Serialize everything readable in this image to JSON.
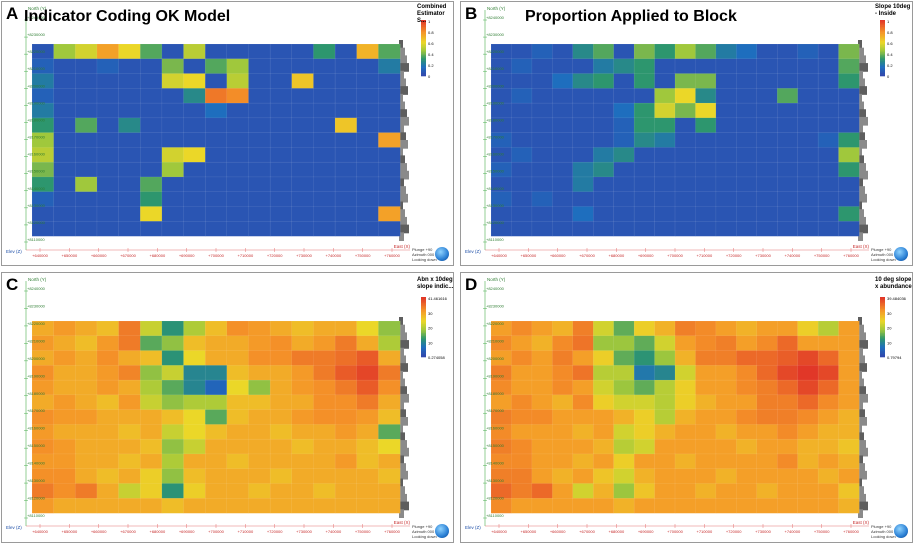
{
  "chart_data": [
    {
      "type": "heatmap",
      "panel_letter": "A",
      "title": "Indicator Coding OK Model",
      "legend_title": "Combined Estimator S...",
      "legend_ticks": [
        "1",
        "0.8",
        "0.6",
        "0.4",
        "0.2",
        "0"
      ],
      "range": [
        0,
        1
      ],
      "rows": [
        [
          0.05,
          0.45,
          0.55,
          0.75,
          0.6,
          0.35,
          0.05,
          0.5,
          0.05,
          0.05,
          0.05,
          0.05,
          0.05,
          0.3,
          0.05,
          0.7,
          0.35
        ],
        [
          0.1,
          0.05,
          0.05,
          0.1,
          0.05,
          0.05,
          0.4,
          0.05,
          0.35,
          0.45,
          0.05,
          0.05,
          0.05,
          0.05,
          0.05,
          0.05,
          0.2
        ],
        [
          0.2,
          0.05,
          0.05,
          0.05,
          0.05,
          0.05,
          0.55,
          0.6,
          0.05,
          0.5,
          0.05,
          0.05,
          0.65,
          0.05,
          0.05,
          0.05,
          0.05
        ],
        [
          0.1,
          0.05,
          0.05,
          0.05,
          0.05,
          0.05,
          0.05,
          0.25,
          0.85,
          0.8,
          0.05,
          0.05,
          0.05,
          0.05,
          0.05,
          0.05,
          0.05
        ],
        [
          0.2,
          0.05,
          0.05,
          0.05,
          0.05,
          0.05,
          0.05,
          0.05,
          0.15,
          0.05,
          0.05,
          0.05,
          0.05,
          0.05,
          0.05,
          0.05,
          0.05
        ],
        [
          0.3,
          0.05,
          0.35,
          0.05,
          0.25,
          0.05,
          0.05,
          0.05,
          0.05,
          0.05,
          0.05,
          0.05,
          0.05,
          0.05,
          0.65,
          0.05,
          0.05
        ],
        [
          0.45,
          0.05,
          0.05,
          0.05,
          0.05,
          0.05,
          0.05,
          0.05,
          0.05,
          0.05,
          0.05,
          0.05,
          0.05,
          0.05,
          0.05,
          0.05,
          0.75
        ],
        [
          0.5,
          0.05,
          0.05,
          0.05,
          0.05,
          0.05,
          0.55,
          0.6,
          0.05,
          0.05,
          0.05,
          0.05,
          0.05,
          0.05,
          0.05,
          0.05,
          0.05
        ],
        [
          0.4,
          0.05,
          0.05,
          0.05,
          0.05,
          0.05,
          0.45,
          0.05,
          0.05,
          0.05,
          0.05,
          0.05,
          0.05,
          0.05,
          0.05,
          0.05,
          0.05
        ],
        [
          0.3,
          0.05,
          0.45,
          0.05,
          0.05,
          0.35,
          0.05,
          0.05,
          0.05,
          0.05,
          0.05,
          0.05,
          0.05,
          0.05,
          0.05,
          0.05,
          0.05
        ],
        [
          0.1,
          0.05,
          0.05,
          0.05,
          0.05,
          0.3,
          0.05,
          0.05,
          0.05,
          0.05,
          0.05,
          0.05,
          0.05,
          0.05,
          0.05,
          0.05,
          0.05
        ],
        [
          0.05,
          0.05,
          0.05,
          0.05,
          0.05,
          0.6,
          0.05,
          0.05,
          0.05,
          0.05,
          0.05,
          0.05,
          0.05,
          0.05,
          0.05,
          0.05,
          0.75
        ],
        [
          0.05,
          0.05,
          0.05,
          0.05,
          0.05,
          0.05,
          0.05,
          0.05,
          0.05,
          0.05,
          0.05,
          0.05,
          0.05,
          0.05,
          0.05,
          0.05,
          0.05
        ]
      ],
      "north_ticks": [
        "+8240000",
        "+8230000",
        "+8220000",
        "+8210000",
        "+8200000",
        "+8190000",
        "+8180000",
        "+8170000",
        "+8160000",
        "+8150000",
        "+8140000",
        "+8130000",
        "+8120000",
        "+8110000"
      ],
      "east_ticks": [
        "+640000",
        "+650000",
        "+660000",
        "+670000",
        "+680000",
        "+690000",
        "+700000",
        "+710000",
        "+720000",
        "+730000",
        "+740000",
        "+750000",
        "+760000"
      ],
      "north_label": "North (Y)",
      "east_label": "East (X)",
      "elev_label": "Elev (Z)",
      "nav_text": [
        "Plunge +90",
        "Azimuth 000",
        "Looking down"
      ]
    },
    {
      "type": "heatmap",
      "panel_letter": "B",
      "title": "Proportion Applied to Block",
      "legend_title": "Slope 10deg - Inside",
      "legend_ticks": [
        "1",
        "0.8",
        "0.6",
        "0.4",
        "0.2",
        "0"
      ],
      "range": [
        0,
        1
      ],
      "rows": [
        [
          0.05,
          0.05,
          0.1,
          0.05,
          0.25,
          0.35,
          0.05,
          0.4,
          0.3,
          0.45,
          0.35,
          0.2,
          0.15,
          0.05,
          0.05,
          0.1,
          0.05,
          0.4
        ],
        [
          0.05,
          0.1,
          0.05,
          0.05,
          0.05,
          0.2,
          0.25,
          0.3,
          0.05,
          0.05,
          0.05,
          0.05,
          0.05,
          0.05,
          0.05,
          0.05,
          0.05,
          0.35
        ],
        [
          0.05,
          0.05,
          0.05,
          0.15,
          0.25,
          0.3,
          0.05,
          0.3,
          0.05,
          0.4,
          0.4,
          0.05,
          0.05,
          0.05,
          0.05,
          0.05,
          0.05,
          0.3
        ],
        [
          0.05,
          0.1,
          0.05,
          0.05,
          0.05,
          0.05,
          0.05,
          0.05,
          0.45,
          0.6,
          0.25,
          0.05,
          0.05,
          0.05,
          0.35,
          0.05,
          0.05,
          0.05
        ],
        [
          0.05,
          0.05,
          0.05,
          0.05,
          0.05,
          0.05,
          0.15,
          0.3,
          0.55,
          0.4,
          0.6,
          0.05,
          0.05,
          0.05,
          0.05,
          0.05,
          0.05,
          0.05
        ],
        [
          0.05,
          0.05,
          0.05,
          0.05,
          0.05,
          0.05,
          0.1,
          0.3,
          0.3,
          0.05,
          0.3,
          0.05,
          0.05,
          0.05,
          0.05,
          0.05,
          0.05,
          0.05
        ],
        [
          0.1,
          0.05,
          0.05,
          0.05,
          0.05,
          0.05,
          0.1,
          0.25,
          0.2,
          0.05,
          0.05,
          0.05,
          0.05,
          0.05,
          0.05,
          0.05,
          0.1,
          0.3
        ],
        [
          0.05,
          0.1,
          0.05,
          0.05,
          0.05,
          0.2,
          0.25,
          0.05,
          0.05,
          0.05,
          0.05,
          0.05,
          0.05,
          0.05,
          0.05,
          0.05,
          0.05,
          0.45
        ],
        [
          0.1,
          0.05,
          0.05,
          0.05,
          0.2,
          0.25,
          0.05,
          0.05,
          0.05,
          0.05,
          0.05,
          0.05,
          0.05,
          0.05,
          0.05,
          0.05,
          0.05,
          0.3
        ],
        [
          0.05,
          0.05,
          0.05,
          0.05,
          0.2,
          0.05,
          0.05,
          0.05,
          0.05,
          0.05,
          0.05,
          0.05,
          0.05,
          0.05,
          0.05,
          0.05,
          0.05,
          0.05
        ],
        [
          0.1,
          0.05,
          0.1,
          0.05,
          0.05,
          0.05,
          0.05,
          0.05,
          0.05,
          0.05,
          0.05,
          0.05,
          0.05,
          0.05,
          0.05,
          0.05,
          0.05,
          0.05
        ],
        [
          0.05,
          0.05,
          0.05,
          0.05,
          0.15,
          0.05,
          0.05,
          0.05,
          0.05,
          0.05,
          0.05,
          0.05,
          0.05,
          0.05,
          0.05,
          0.05,
          0.05,
          0.3
        ],
        [
          0.05,
          0.05,
          0.05,
          0.05,
          0.05,
          0.05,
          0.05,
          0.05,
          0.05,
          0.05,
          0.05,
          0.05,
          0.05,
          0.05,
          0.05,
          0.05,
          0.05,
          0.05
        ]
      ],
      "north_ticks": [
        "+8240000",
        "+8230000",
        "+8220000",
        "+8210000",
        "+8200000",
        "+8190000",
        "+8180000",
        "+8170000",
        "+8160000",
        "+8150000",
        "+8140000",
        "+8130000",
        "+8120000",
        "+8110000"
      ],
      "east_ticks": [
        "+640000",
        "+650000",
        "+660000",
        "+670000",
        "+680000",
        "+690000",
        "+700000",
        "+710000",
        "+720000",
        "+730000",
        "+740000",
        "+750000",
        "+760000"
      ],
      "north_label": "North (Y)",
      "east_label": "East (X)",
      "elev_label": "Elev (Z)",
      "nav_text": [
        "Plunge +90",
        "Azimuth 000",
        "Looking down"
      ]
    },
    {
      "type": "heatmap",
      "panel_letter": "C",
      "title": "",
      "legend_title": "Abn x 10deg slope indic...",
      "legend_ticks": [
        "41.461616",
        "30",
        "20",
        "10",
        "0.274058"
      ],
      "range": [
        0.274058,
        41.461616
      ],
      "rows": [
        [
          30,
          32,
          30,
          28,
          35,
          22,
          12,
          20,
          28,
          33,
          32,
          30,
          28,
          30,
          30,
          25,
          18
        ],
        [
          32,
          30,
          28,
          32,
          35,
          15,
          18,
          28,
          30,
          30,
          32,
          33,
          30,
          32,
          35,
          30,
          20
        ],
        [
          30,
          32,
          30,
          33,
          30,
          28,
          12,
          25,
          30,
          30,
          33,
          33,
          35,
          35,
          36,
          38,
          30
        ],
        [
          33,
          30,
          30,
          32,
          34,
          18,
          22,
          10,
          10,
          28,
          30,
          30,
          32,
          35,
          38,
          40,
          35
        ],
        [
          32,
          30,
          30,
          32,
          30,
          20,
          15,
          10,
          5,
          25,
          18,
          30,
          32,
          33,
          35,
          38,
          33
        ],
        [
          30,
          32,
          30,
          28,
          32,
          22,
          18,
          20,
          20,
          28,
          28,
          30,
          30,
          33,
          33,
          35,
          30
        ],
        [
          33,
          32,
          32,
          30,
          30,
          30,
          28,
          25,
          15,
          28,
          30,
          30,
          32,
          33,
          33,
          32,
          28
        ],
        [
          32,
          30,
          30,
          30,
          28,
          30,
          22,
          25,
          28,
          30,
          30,
          28,
          30,
          30,
          32,
          30,
          15
        ],
        [
          33,
          32,
          30,
          30,
          30,
          28,
          18,
          22,
          30,
          30,
          30,
          30,
          28,
          30,
          30,
          28,
          25
        ],
        [
          32,
          32,
          30,
          30,
          28,
          30,
          20,
          30,
          30,
          28,
          30,
          30,
          30,
          30,
          32,
          28,
          30
        ],
        [
          33,
          33,
          30,
          28,
          30,
          26,
          18,
          28,
          30,
          30,
          30,
          28,
          30,
          30,
          30,
          30,
          28
        ],
        [
          35,
          33,
          35,
          30,
          22,
          26,
          12,
          26,
          30,
          30,
          28,
          30,
          30,
          28,
          30,
          30,
          30
        ],
        [
          32,
          30,
          30,
          30,
          30,
          30,
          28,
          30,
          30,
          30,
          30,
          30,
          30,
          30,
          30,
          30,
          30
        ]
      ],
      "north_ticks": [
        "+8240000",
        "+8230000",
        "+8220000",
        "+8210000",
        "+8200000",
        "+8190000",
        "+8180000",
        "+8170000",
        "+8160000",
        "+8150000",
        "+8140000",
        "+8130000",
        "+8120000",
        "+8110000"
      ],
      "east_ticks": [
        "+640000",
        "+650000",
        "+660000",
        "+670000",
        "+680000",
        "+690000",
        "+700000",
        "+710000",
        "+720000",
        "+730000",
        "+740000",
        "+750000",
        "+760000"
      ],
      "north_label": "North (Y)",
      "east_label": "East (X)",
      "elev_label": "Elev (Z)",
      "nav_text": [
        "Plunge +90",
        "Azimuth 000",
        "Looking down"
      ]
    },
    {
      "type": "heatmap",
      "panel_letter": "D",
      "title": "",
      "legend_title": "10 deg slope x abundance",
      "legend_ticks": [
        "39.484036",
        "30",
        "20",
        "10",
        "0.79794"
      ],
      "range": [
        0.79794,
        39.484036
      ],
      "rows": [
        [
          30,
          32,
          30,
          28,
          33,
          22,
          15,
          25,
          28,
          33,
          32,
          30,
          28,
          30,
          30,
          25,
          20,
          30
        ],
        [
          32,
          30,
          28,
          32,
          34,
          18,
          18,
          15,
          22,
          30,
          32,
          33,
          30,
          32,
          35,
          30,
          30,
          30
        ],
        [
          30,
          32,
          30,
          33,
          30,
          25,
          15,
          12,
          18,
          28,
          33,
          33,
          35,
          35,
          36,
          38,
          35,
          30
        ],
        [
          33,
          30,
          30,
          32,
          34,
          20,
          20,
          8,
          10,
          22,
          30,
          30,
          32,
          35,
          38,
          40,
          38,
          30
        ],
        [
          32,
          30,
          30,
          32,
          30,
          22,
          18,
          15,
          20,
          25,
          30,
          30,
          32,
          33,
          35,
          38,
          35,
          30
        ],
        [
          30,
          32,
          30,
          28,
          32,
          25,
          22,
          22,
          20,
          25,
          28,
          30,
          30,
          33,
          33,
          35,
          32,
          30
        ],
        [
          33,
          32,
          32,
          30,
          30,
          30,
          28,
          25,
          20,
          28,
          30,
          30,
          32,
          33,
          33,
          32,
          30,
          28
        ],
        [
          32,
          30,
          30,
          30,
          28,
          30,
          22,
          25,
          28,
          30,
          30,
          28,
          30,
          30,
          32,
          30,
          28,
          28
        ],
        [
          33,
          32,
          30,
          30,
          30,
          28,
          20,
          22,
          30,
          30,
          30,
          30,
          28,
          30,
          30,
          28,
          28,
          26
        ],
        [
          32,
          32,
          30,
          30,
          28,
          30,
          25,
          30,
          30,
          28,
          30,
          30,
          30,
          30,
          32,
          28,
          30,
          28
        ],
        [
          33,
          33,
          30,
          28,
          30,
          26,
          22,
          28,
          30,
          30,
          30,
          28,
          30,
          30,
          30,
          30,
          28,
          30
        ],
        [
          35,
          33,
          35,
          30,
          22,
          28,
          18,
          26,
          30,
          30,
          28,
          30,
          30,
          28,
          30,
          30,
          30,
          26
        ],
        [
          32,
          30,
          30,
          30,
          30,
          30,
          28,
          30,
          30,
          30,
          30,
          30,
          30,
          30,
          30,
          30,
          30,
          28
        ]
      ],
      "north_ticks": [
        "+8240000",
        "+8230000",
        "+8220000",
        "+8210000",
        "+8200000",
        "+8190000",
        "+8180000",
        "+8170000",
        "+8160000",
        "+8150000",
        "+8140000",
        "+8130000",
        "+8120000",
        "+8110000"
      ],
      "east_ticks": [
        "+640000",
        "+650000",
        "+660000",
        "+670000",
        "+680000",
        "+690000",
        "+700000",
        "+710000",
        "+720000",
        "+730000",
        "+740000",
        "+750000",
        "+760000"
      ],
      "north_label": "North (Y)",
      "east_label": "East (X)",
      "elev_label": "Elev (Z)",
      "nav_text": [
        "Plunge +90",
        "Azimuth 000",
        "Looking down"
      ]
    }
  ]
}
